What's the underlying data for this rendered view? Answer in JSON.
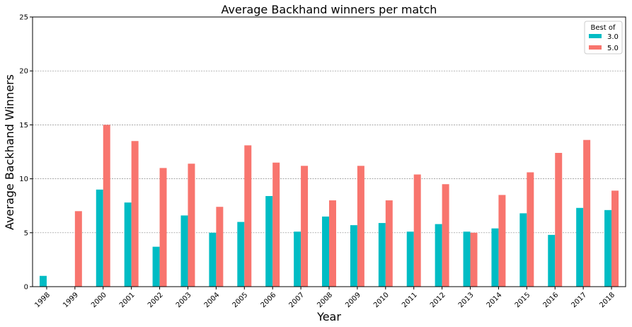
{
  "chart_data": {
    "type": "bar",
    "title": "Average Backhand winners per match",
    "xlabel": "Year",
    "ylabel": "Average Backhand Winners",
    "ylim": [
      0,
      25
    ],
    "yticks": [
      0,
      5,
      10,
      15,
      20,
      25
    ],
    "grid": "y-dashed",
    "legend": {
      "title": "Best of",
      "placement": "top-right"
    },
    "categories": [
      "1998",
      "1999",
      "2000",
      "2001",
      "2002",
      "2003",
      "2004",
      "2005",
      "2006",
      "2007",
      "2008",
      "2009",
      "2010",
      "2011",
      "2012",
      "2013",
      "2014",
      "2015",
      "2016",
      "2017",
      "2018"
    ],
    "series": [
      {
        "name": "3.0",
        "color": "#00bcc4",
        "values": [
          1.0,
          null,
          9.0,
          7.8,
          3.7,
          6.6,
          5.0,
          6.0,
          8.4,
          5.1,
          6.5,
          5.7,
          5.9,
          5.1,
          5.8,
          5.1,
          5.4,
          6.8,
          4.8,
          7.3,
          7.1
        ]
      },
      {
        "name": "5.0",
        "color": "#f8756e",
        "values": [
          null,
          7.0,
          15.0,
          13.5,
          11.0,
          11.4,
          7.4,
          13.1,
          11.5,
          11.2,
          8.0,
          11.2,
          8.0,
          10.4,
          9.5,
          5.0,
          8.5,
          10.6,
          12.4,
          13.6,
          8.9
        ]
      }
    ]
  }
}
